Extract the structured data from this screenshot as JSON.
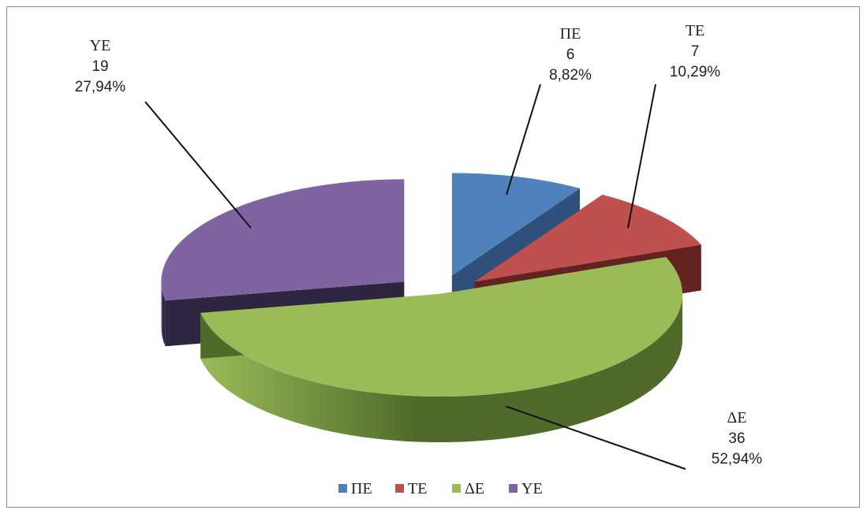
{
  "chart_data": {
    "type": "pie",
    "title": "",
    "style": "3d-exploded",
    "legend_position": "bottom",
    "categories": [
      "ΠΕ",
      "ΤΕ",
      "ΔΕ",
      "ΥΕ"
    ],
    "values": [
      6,
      7,
      36,
      19
    ],
    "percent_labels": [
      "8,82%",
      "10,29%",
      "52,94%",
      "27,94%"
    ],
    "value_labels": [
      "6",
      "7",
      "36",
      "19"
    ],
    "colors": [
      "#4f81bd",
      "#c0504d",
      "#9bbb59",
      "#8064a2"
    ],
    "side_colors": [
      "#2f507a",
      "#632321",
      "#4f6a2a",
      "#2e2640"
    ]
  }
}
